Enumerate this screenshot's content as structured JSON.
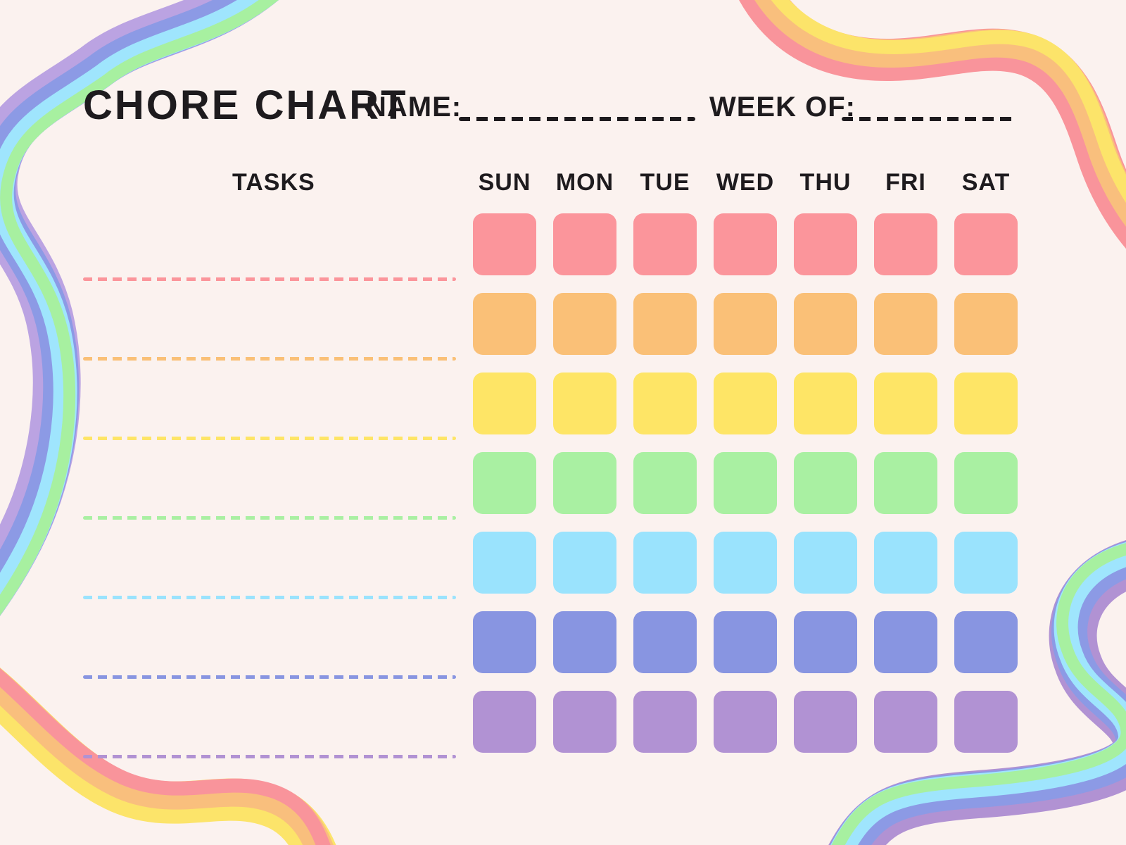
{
  "title": "CHORE CHART",
  "fields": {
    "name_label": "NAME:",
    "name_value": "",
    "week_label": "WEEK OF:",
    "week_value": ""
  },
  "table": {
    "tasks_header": "TASKS",
    "days": [
      "SUN",
      "MON",
      "TUE",
      "WED",
      "THU",
      "FRI",
      "SAT"
    ],
    "task_rows": [
      {
        "task": "",
        "color": "#FB959B"
      },
      {
        "task": "",
        "color": "#FAC077"
      },
      {
        "task": "",
        "color": "#FEE566"
      },
      {
        "task": "",
        "color": "#A9F0A2"
      },
      {
        "task": "",
        "color": "#9AE3FD"
      },
      {
        "task": "",
        "color": "#8895E1"
      },
      {
        "task": "",
        "color": "#B192D3"
      }
    ]
  },
  "colors": {
    "background": "#FBF2EF",
    "text": "#1E1B1E",
    "ribbon_palette": {
      "purple": "#BBA3E2",
      "periwinkle": "#8C9AE5",
      "light_blue": "#9FE5FD",
      "green": "#A7F0A0",
      "yellow": "#FCE46A",
      "orange": "#F9BF7D",
      "pink": "#F9949B"
    }
  }
}
